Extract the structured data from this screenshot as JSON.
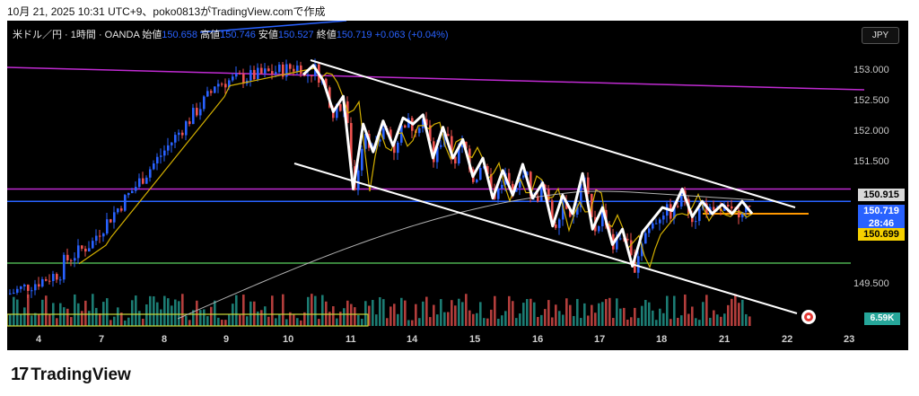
{
  "caption": "10月 21, 2025 10:31 UTC+9、poko0813がTradingView.comで作成",
  "header": {
    "symbol": "米ドル／円 · 1時間 · OANDA",
    "open_label": "始値",
    "open": "150.658",
    "high_label": "高値",
    "high": "150.746",
    "low_label": "安値",
    "low": "150.527",
    "close_label": "終値",
    "close": "150.719",
    "change": "+0.063 (+0.04%)"
  },
  "currency_button": "JPY",
  "colors": {
    "background": "#000000",
    "up": "#2962ff",
    "down": "#ef5350",
    "vol_up": "#26a69a",
    "vol_down": "#ef5350",
    "ma_fast": "#d4b000",
    "ma_slow": "#b0b0b0",
    "channel": "#ffffff",
    "zigzag": "#ffffff",
    "resistance_purple": "#c02bd2",
    "support_blue": "#2962ff",
    "support_green": "#4caf50",
    "level_orange": "#ff9800"
  },
  "price_tags": {
    "a": "150.915",
    "b_price": "150.719",
    "b_time": "28:46",
    "c": "150.699"
  },
  "volume_tag": "6.59K",
  "logo_text": "TradingView",
  "chart_data": {
    "type": "candlestick",
    "y_ticks": [
      "153.000",
      "152.500",
      "152.000",
      "151.500",
      "149.500"
    ],
    "x_ticks": [
      "4",
      "7",
      "8",
      "9",
      "10",
      "11",
      "14",
      "15",
      "16",
      "17",
      "18",
      "21",
      "22",
      "23"
    ],
    "ylim": [
      149.0,
      153.3
    ],
    "levels": [
      {
        "value": 151.1,
        "color": "purple"
      },
      {
        "value": 150.9,
        "color": "blue"
      },
      {
        "value": 150.699,
        "color": "orange"
      },
      {
        "value": 149.9,
        "color": "green"
      }
    ],
    "zigzag": [
      152.95,
      153.1,
      152.85,
      152.35,
      152.6,
      151.1,
      152.15,
      151.7,
      152.2,
      151.8,
      152.25,
      152.15,
      152.3,
      151.6,
      152.1,
      151.6,
      151.9,
      151.3,
      151.6,
      150.95,
      151.4,
      151.0,
      151.5,
      150.95,
      151.2,
      150.5,
      151.0,
      150.7,
      151.35,
      150.45,
      150.8,
      150.2,
      150.45,
      149.85,
      150.4,
      150.6,
      150.8,
      150.75,
      151.1,
      150.65,
      150.9,
      150.7,
      150.85,
      150.7,
      150.9,
      150.7
    ]
  }
}
